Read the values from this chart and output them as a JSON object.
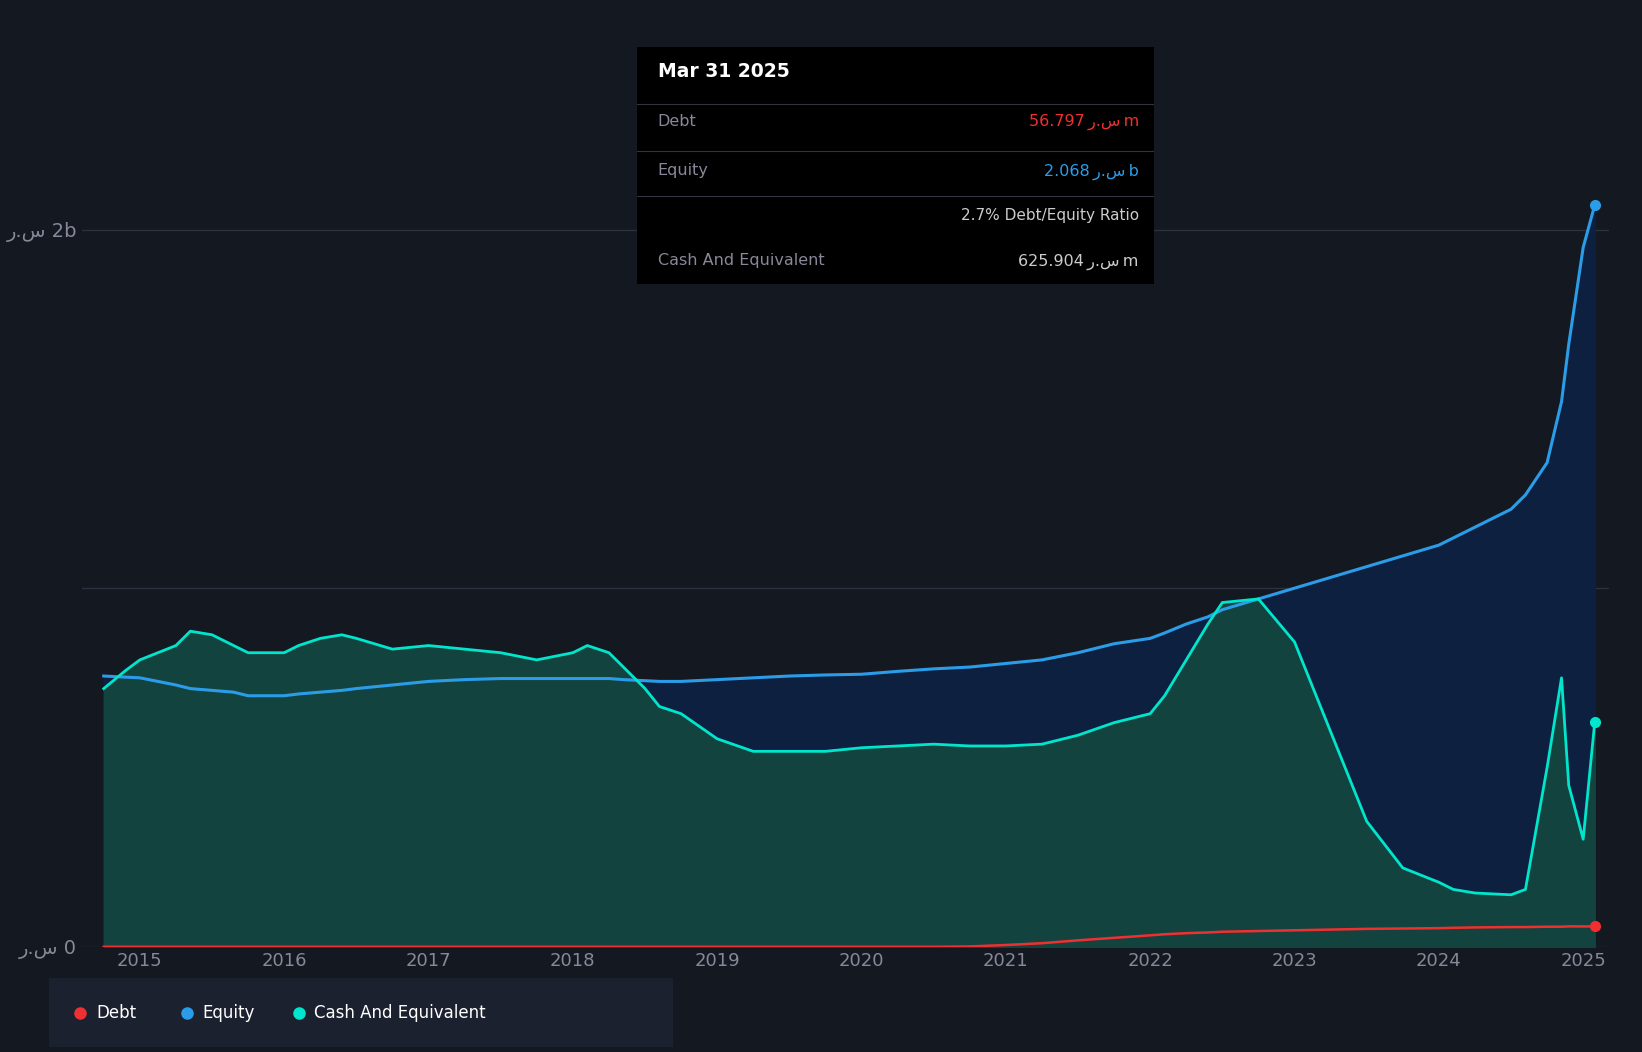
{
  "bg_color": "#141821",
  "chart_bg": "#141821",
  "ylim": [
    0,
    2.2
  ],
  "years": [
    2014.75,
    2014.9,
    2015.0,
    2015.25,
    2015.35,
    2015.5,
    2015.65,
    2015.75,
    2016.0,
    2016.1,
    2016.25,
    2016.4,
    2016.5,
    2016.75,
    2017.0,
    2017.25,
    2017.5,
    2017.75,
    2018.0,
    2018.1,
    2018.25,
    2018.35,
    2018.5,
    2018.6,
    2018.75,
    2019.0,
    2019.25,
    2019.5,
    2019.75,
    2020.0,
    2020.25,
    2020.5,
    2020.75,
    2021.0,
    2021.25,
    2021.5,
    2021.75,
    2022.0,
    2022.1,
    2022.25,
    2022.4,
    2022.5,
    2022.75,
    2023.0,
    2023.25,
    2023.5,
    2023.75,
    2024.0,
    2024.1,
    2024.25,
    2024.5,
    2024.6,
    2024.75,
    2024.85,
    2024.9,
    2025.0,
    2025.08
  ],
  "equity": [
    0.755,
    0.752,
    0.75,
    0.73,
    0.72,
    0.715,
    0.71,
    0.7,
    0.7,
    0.705,
    0.71,
    0.715,
    0.72,
    0.73,
    0.74,
    0.745,
    0.748,
    0.748,
    0.748,
    0.748,
    0.748,
    0.745,
    0.742,
    0.74,
    0.74,
    0.745,
    0.75,
    0.755,
    0.758,
    0.76,
    0.768,
    0.775,
    0.78,
    0.79,
    0.8,
    0.82,
    0.845,
    0.86,
    0.875,
    0.9,
    0.92,
    0.94,
    0.97,
    1.0,
    1.03,
    1.06,
    1.09,
    1.12,
    1.14,
    1.17,
    1.22,
    1.26,
    1.35,
    1.52,
    1.68,
    1.95,
    2.068
  ],
  "debt": [
    0.0,
    0.0,
    0.0,
    0.0,
    0.0,
    0.0,
    0.0,
    0.0,
    0.0,
    0.0,
    0.0,
    0.0,
    0.0,
    0.0,
    0.0,
    0.0,
    0.0,
    0.0,
    0.0,
    0.0,
    0.0,
    0.0,
    0.0,
    0.0,
    0.0,
    0.0,
    0.0,
    0.0,
    0.0,
    0.0,
    0.0,
    0.0,
    0.001,
    0.005,
    0.01,
    0.018,
    0.025,
    0.032,
    0.035,
    0.038,
    0.04,
    0.042,
    0.044,
    0.046,
    0.048,
    0.05,
    0.051,
    0.052,
    0.053,
    0.054,
    0.055,
    0.055,
    0.056,
    0.056,
    0.057,
    0.0568,
    0.0568
  ],
  "cash": [
    0.72,
    0.77,
    0.8,
    0.84,
    0.88,
    0.87,
    0.84,
    0.82,
    0.82,
    0.84,
    0.86,
    0.87,
    0.86,
    0.83,
    0.84,
    0.83,
    0.82,
    0.8,
    0.82,
    0.84,
    0.82,
    0.78,
    0.72,
    0.67,
    0.65,
    0.58,
    0.545,
    0.545,
    0.545,
    0.555,
    0.56,
    0.565,
    0.56,
    0.56,
    0.565,
    0.59,
    0.625,
    0.65,
    0.7,
    0.8,
    0.9,
    0.96,
    0.97,
    0.85,
    0.6,
    0.35,
    0.22,
    0.18,
    0.16,
    0.15,
    0.145,
    0.16,
    0.5,
    0.75,
    0.45,
    0.3,
    0.626
  ],
  "equity_color": "#2b9de8",
  "debt_color": "#f03030",
  "cash_color": "#00e5cc",
  "equity_fill_top": "#0a2a50",
  "equity_fill_bot": "#0d1929",
  "cash_fill": "#144d4a",
  "legend_bg": "#1c2130",
  "tooltip": {
    "title": "Mar 31 2025",
    "debt_label": "Debt",
    "debt_value": "56.797 ر.س m",
    "equity_label": "Equity",
    "equity_value": "2.068 ر.س b",
    "ratio_value": "2.7% Debt/Equity Ratio",
    "cash_label": "Cash And Equivalent",
    "cash_value": "625.904 ر.س m"
  }
}
